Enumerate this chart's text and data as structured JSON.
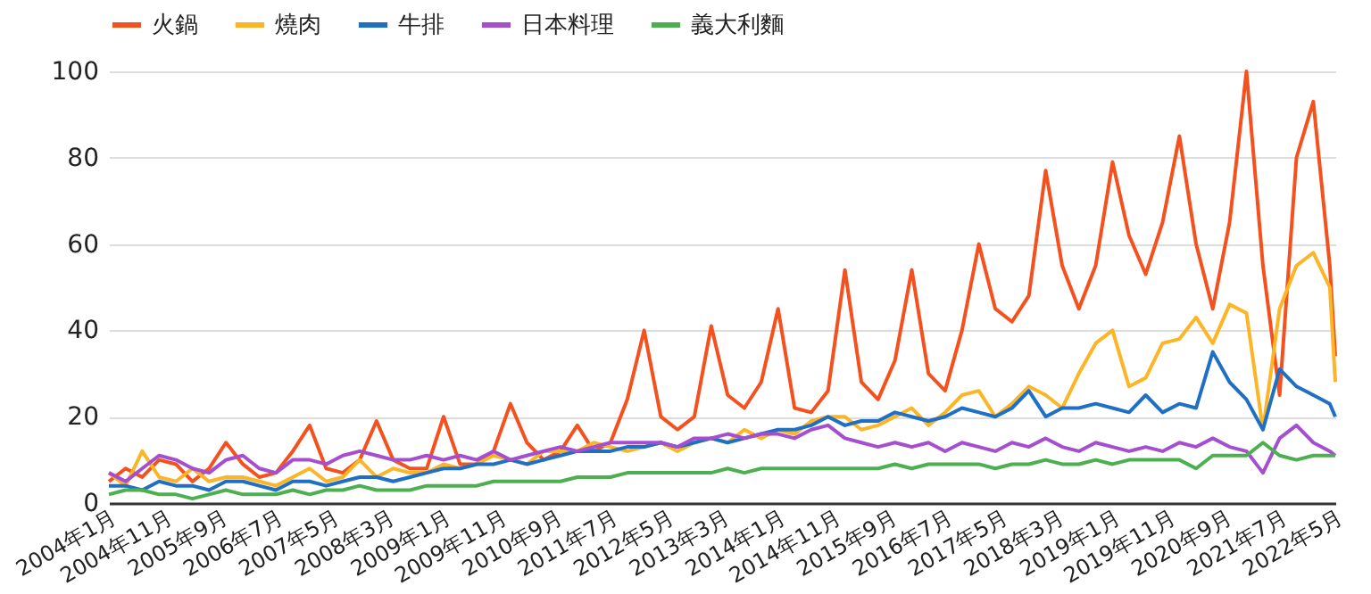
{
  "chart_data": {
    "type": "line",
    "legend": "top left",
    "grid": "y",
    "x": [
      "2004-01",
      "2004-04",
      "2004-07",
      "2004-10",
      "2005-01",
      "2005-04",
      "2005-07",
      "2005-10",
      "2006-01",
      "2006-04",
      "2006-07",
      "2006-10",
      "2007-01",
      "2007-04",
      "2007-07",
      "2007-10",
      "2008-01",
      "2008-04",
      "2008-07",
      "2008-10",
      "2009-01",
      "2009-04",
      "2009-07",
      "2009-10",
      "2010-01",
      "2010-04",
      "2010-07",
      "2010-10",
      "2011-01",
      "2011-04",
      "2011-07",
      "2011-10",
      "2012-01",
      "2012-04",
      "2012-07",
      "2012-10",
      "2013-01",
      "2013-04",
      "2013-07",
      "2013-10",
      "2014-01",
      "2014-04",
      "2014-07",
      "2014-10",
      "2015-01",
      "2015-04",
      "2015-07",
      "2015-10",
      "2016-01",
      "2016-04",
      "2016-07",
      "2016-10",
      "2017-01",
      "2017-04",
      "2017-07",
      "2017-10",
      "2018-01",
      "2018-04",
      "2018-07",
      "2018-10",
      "2019-01",
      "2019-04",
      "2019-07",
      "2019-10",
      "2020-01",
      "2020-04",
      "2020-07",
      "2020-10",
      "2021-01",
      "2021-04",
      "2021-07",
      "2021-10",
      "2022-01",
      "2022-04",
      "2022-05"
    ],
    "series": [
      {
        "name": "火鍋",
        "color": "#f4511e",
        "values": [
          5,
          8,
          6,
          10,
          9,
          5,
          8,
          14,
          9,
          6,
          7,
          12,
          18,
          8,
          7,
          10,
          19,
          10,
          8,
          8,
          20,
          9,
          9,
          12,
          23,
          14,
          10,
          12,
          18,
          12,
          14,
          24,
          40,
          20,
          17,
          20,
          41,
          25,
          22,
          28,
          45,
          22,
          21,
          26,
          54,
          28,
          24,
          33,
          54,
          30,
          26,
          40,
          60,
          45,
          42,
          48,
          77,
          55,
          45,
          55,
          79,
          62,
          53,
          65,
          85,
          60,
          45,
          65,
          100,
          55,
          25,
          80,
          93,
          55,
          34
        ]
      },
      {
        "name": "燒肉",
        "color": "#fbb526",
        "values": [
          7,
          4,
          12,
          6,
          5,
          8,
          5,
          6,
          6,
          5,
          4,
          6,
          8,
          5,
          6,
          10,
          6,
          8,
          7,
          7,
          9,
          8,
          9,
          11,
          10,
          9,
          12,
          12,
          12,
          14,
          13,
          12,
          13,
          14,
          12,
          14,
          15,
          14,
          17,
          15,
          17,
          16,
          19,
          20,
          20,
          17,
          18,
          20,
          22,
          18,
          21,
          25,
          26,
          20,
          23,
          27,
          25,
          22,
          30,
          37,
          40,
          27,
          29,
          37,
          38,
          43,
          37,
          46,
          44,
          17,
          45,
          55,
          58,
          50,
          28
        ]
      },
      {
        "name": "牛排",
        "color": "#1f6fc5",
        "values": [
          4,
          4,
          3,
          5,
          4,
          4,
          3,
          5,
          5,
          4,
          3,
          5,
          5,
          4,
          5,
          6,
          6,
          5,
          6,
          7,
          8,
          8,
          9,
          9,
          10,
          9,
          10,
          11,
          12,
          12,
          12,
          13,
          13,
          14,
          13,
          14,
          15,
          14,
          15,
          16,
          17,
          17,
          18,
          20,
          18,
          19,
          19,
          21,
          20,
          19,
          20,
          22,
          21,
          20,
          22,
          26,
          20,
          22,
          22,
          23,
          22,
          21,
          25,
          21,
          23,
          22,
          35,
          28,
          24,
          17,
          31,
          27,
          25,
          23,
          20
        ]
      },
      {
        "name": "日本料理",
        "color": "#a54ecf",
        "values": [
          7,
          5,
          8,
          11,
          10,
          8,
          7,
          10,
          11,
          8,
          7,
          10,
          10,
          9,
          11,
          12,
          11,
          10,
          10,
          11,
          10,
          11,
          10,
          12,
          10,
          11,
          12,
          13,
          12,
          13,
          14,
          14,
          14,
          14,
          13,
          15,
          15,
          16,
          15,
          16,
          16,
          15,
          17,
          18,
          15,
          14,
          13,
          14,
          13,
          14,
          12,
          14,
          13,
          12,
          14,
          13,
          15,
          13,
          12,
          14,
          13,
          12,
          13,
          12,
          14,
          13,
          15,
          13,
          12,
          7,
          15,
          18,
          14,
          12,
          11
        ]
      },
      {
        "name": "義大利麵",
        "color": "#4caf50",
        "values": [
          2,
          3,
          3,
          2,
          2,
          1,
          2,
          3,
          2,
          2,
          2,
          3,
          2,
          3,
          3,
          4,
          3,
          3,
          3,
          4,
          4,
          4,
          4,
          5,
          5,
          5,
          5,
          5,
          6,
          6,
          6,
          7,
          7,
          7,
          7,
          7,
          7,
          8,
          7,
          8,
          8,
          8,
          8,
          8,
          8,
          8,
          8,
          9,
          8,
          9,
          9,
          9,
          9,
          8,
          9,
          9,
          10,
          9,
          9,
          10,
          9,
          10,
          10,
          10,
          10,
          8,
          11,
          11,
          11,
          14,
          11,
          10,
          11,
          11,
          11
        ]
      }
    ],
    "xlim": [
      "2004-01",
      "2022-05"
    ],
    "xticks": [
      {
        "value": "2004-01",
        "label": "2004年1月"
      },
      {
        "value": "2004-11",
        "label": "2004年11月"
      },
      {
        "value": "2005-09",
        "label": "2005年9月"
      },
      {
        "value": "2006-07",
        "label": "2006年7月"
      },
      {
        "value": "2007-05",
        "label": "2007年5月"
      },
      {
        "value": "2008-03",
        "label": "2008年3月"
      },
      {
        "value": "2009-01",
        "label": "2009年1月"
      },
      {
        "value": "2009-11",
        "label": "2009年11月"
      },
      {
        "value": "2010-09",
        "label": "2010年9月"
      },
      {
        "value": "2011-07",
        "label": "2011年7月"
      },
      {
        "value": "2012-05",
        "label": "2012年5月"
      },
      {
        "value": "2013-03",
        "label": "2013年3月"
      },
      {
        "value": "2014-01",
        "label": "2014年1月"
      },
      {
        "value": "2014-11",
        "label": "2014年11月"
      },
      {
        "value": "2015-09",
        "label": "2015年9月"
      },
      {
        "value": "2016-07",
        "label": "2016年7月"
      },
      {
        "value": "2017-05",
        "label": "2017年5月"
      },
      {
        "value": "2018-03",
        "label": "2018年3月"
      },
      {
        "value": "2019-01",
        "label": "2019年1月"
      },
      {
        "value": "2019-11",
        "label": "2019年11月"
      },
      {
        "value": "2020-09",
        "label": "2020年9月"
      },
      {
        "value": "2021-07",
        "label": "2021年7月"
      },
      {
        "value": "2022-05",
        "label": "2022年5月"
      }
    ],
    "ylim": [
      0,
      100
    ],
    "yticks": [
      0,
      20,
      40,
      60,
      80,
      100
    ]
  }
}
